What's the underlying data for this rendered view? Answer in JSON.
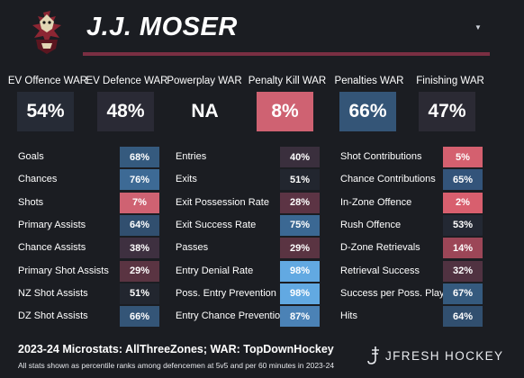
{
  "player_name": "J.J. MOSER",
  "team_logo_icon": "coyotes-logo-icon",
  "war": [
    {
      "label": "EV Offence WAR",
      "value": "54%",
      "color": "#262b36"
    },
    {
      "label": "EV Defence WAR",
      "value": "48%",
      "color": "#2a2a35"
    },
    {
      "label": "Powerplay WAR",
      "value": "NA",
      "color": "#1b1d22"
    },
    {
      "label": "Penalty Kill WAR",
      "value": "8%",
      "color": "#cf6272"
    },
    {
      "label": "Penalties WAR",
      "value": "66%",
      "color": "#345577"
    },
    {
      "label": "Finishing WAR",
      "value": "47%",
      "color": "#2b2a34"
    }
  ],
  "columns": [
    {
      "stats": [
        {
          "label": "Goals",
          "value": "68%",
          "color": "#355a7e"
        },
        {
          "label": "Chances",
          "value": "76%",
          "color": "#3d6a95"
        },
        {
          "label": "Shots",
          "value": "7%",
          "color": "#cf6272"
        },
        {
          "label": "Primary Assists",
          "value": "64%",
          "color": "#314f6f"
        },
        {
          "label": "Chance Assists",
          "value": "38%",
          "color": "#3e3040"
        },
        {
          "label": "Primary Shot Assists",
          "value": "29%",
          "color": "#5a3442"
        },
        {
          "label": "NZ Shot Assists",
          "value": "51%",
          "color": "#22262f"
        },
        {
          "label": "DZ Shot Assists",
          "value": "66%",
          "color": "#345577"
        }
      ]
    },
    {
      "stats": [
        {
          "label": "Entries",
          "value": "40%",
          "color": "#3a2f3d"
        },
        {
          "label": "Exits",
          "value": "51%",
          "color": "#22262f"
        },
        {
          "label": "Exit Possession Rate",
          "value": "28%",
          "color": "#5c3444"
        },
        {
          "label": "Exit Success Rate",
          "value": "75%",
          "color": "#3b6893"
        },
        {
          "label": "Passes",
          "value": "29%",
          "color": "#5a3442"
        },
        {
          "label": "Entry Denial Rate",
          "value": "98%",
          "color": "#62a9e2"
        },
        {
          "label": "Poss. Entry Prevention",
          "value": "98%",
          "color": "#62a9e2"
        },
        {
          "label": "Entry Chance Prevention",
          "value": "87%",
          "color": "#4b82b6"
        }
      ]
    },
    {
      "stats": [
        {
          "label": "Shot Contributions",
          "value": "5%",
          "color": "#d4606f"
        },
        {
          "label": "Chance Contributions",
          "value": "65%",
          "color": "#33547a"
        },
        {
          "label": "In-Zone Offence",
          "value": "2%",
          "color": "#d85f6e"
        },
        {
          "label": "Rush Offence",
          "value": "53%",
          "color": "#232833"
        },
        {
          "label": "D-Zone Retrievals",
          "value": "14%",
          "color": "#9c4657"
        },
        {
          "label": "Retrieval Success",
          "value": "32%",
          "color": "#503241"
        },
        {
          "label": "Success per Poss. Play",
          "value": "67%",
          "color": "#355a7e"
        },
        {
          "label": "Hits",
          "value": "64%",
          "color": "#314f6f"
        }
      ]
    }
  ],
  "footer": {
    "microstats_line": "2023-24 Microstats: AllThreeZones; WAR: TopDownHockey",
    "note": "All stats shown as percentile ranks among defencemen at 5v5 and per 60 minutes in 2023-24"
  },
  "brand": {
    "text": "JFRESH HOCKEY",
    "icon": "jfresh-logo-icon"
  }
}
